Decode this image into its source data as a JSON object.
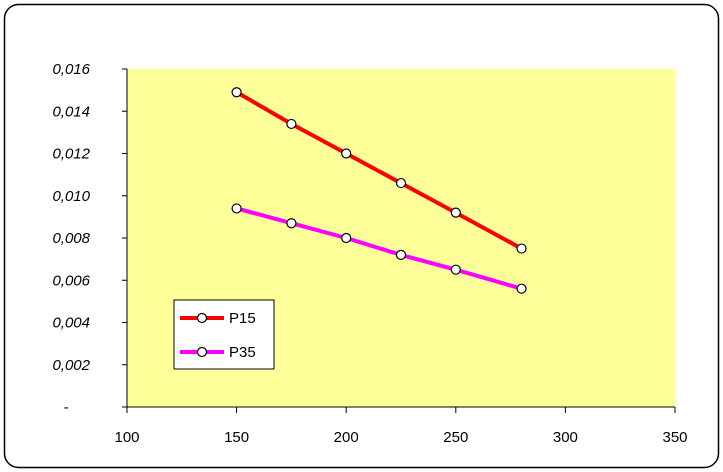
{
  "chart_data": {
    "type": "line",
    "title": "",
    "xlabel": "",
    "ylabel": "",
    "xlim": [
      100,
      350
    ],
    "ylim": [
      0,
      0.016
    ],
    "x_ticks": [
      100,
      150,
      200,
      250,
      300,
      350
    ],
    "x_tick_labels": [
      "100",
      "150",
      "200",
      "250",
      "300",
      "350"
    ],
    "y_ticks": [
      0,
      0.002,
      0.004,
      0.006,
      0.008,
      0.01,
      0.012,
      0.014,
      0.016
    ],
    "y_tick_labels": [
      "-",
      "0,002",
      "0,004",
      "0,006",
      "0,008",
      "0,010",
      "0,012",
      "0,014",
      "0,016"
    ],
    "grid": false,
    "legend_position": "bottom-left",
    "plot_background": "#ffff99",
    "series": [
      {
        "name": "P15",
        "color": "#ff0000",
        "x": [
          150,
          175,
          200,
          225,
          250,
          280
        ],
        "y": [
          0.0149,
          0.0134,
          0.012,
          0.0106,
          0.0092,
          0.0075
        ]
      },
      {
        "name": "P35",
        "color": "#ff00ff",
        "x": [
          150,
          175,
          200,
          225,
          250,
          280
        ],
        "y": [
          0.0094,
          0.0087,
          0.008,
          0.0072,
          0.0065,
          0.0056
        ]
      }
    ]
  }
}
